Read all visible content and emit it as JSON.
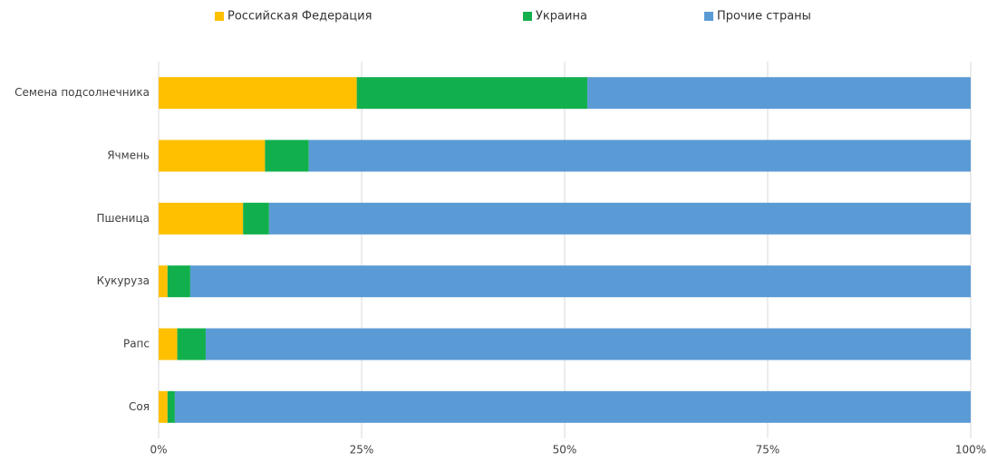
{
  "chart_data": {
    "type": "bar",
    "orientation": "horizontal",
    "stacked": true,
    "categories": [
      "Семена подсолнечника",
      "Ячмень",
      "Пшеница",
      "Кукуруза",
      "Рапс",
      "Соя"
    ],
    "series": [
      {
        "name": "Российская Федерация",
        "color": "#ffc000",
        "values": [
          24.4,
          13.1,
          10.4,
          1.1,
          2.3,
          1.1
        ]
      },
      {
        "name": "Украина",
        "color": "#12b04d",
        "values": [
          28.4,
          5.4,
          3.2,
          2.8,
          3.5,
          0.9
        ]
      },
      {
        "name": "Прочие страны",
        "color": "#5b9bd5",
        "values": [
          47.2,
          81.5,
          86.4,
          96.1,
          94.2,
          98.0
        ]
      }
    ],
    "xlim": [
      0,
      100
    ],
    "xticks": [
      {
        "value": 0,
        "label": "0%"
      },
      {
        "value": 25,
        "label": "25%"
      },
      {
        "value": 50,
        "label": "50%"
      },
      {
        "value": 75,
        "label": "75%"
      },
      {
        "value": 100,
        "label": "100%"
      }
    ],
    "grid": true,
    "legend": "top"
  }
}
